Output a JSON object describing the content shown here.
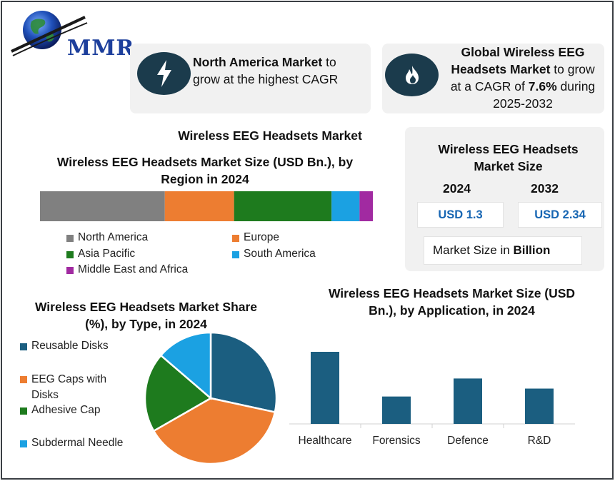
{
  "logo": {
    "text": "MMR",
    "icon": "globe-icon"
  },
  "info_cards": {
    "north_america": {
      "icon": "lightning-icon",
      "bold": "North America Market",
      "rest": " to grow at the highest CAGR"
    },
    "global": {
      "icon": "flame-icon",
      "bold_1": "Global Wireless EEG Headsets Market",
      "mid": " to grow at a CAGR of ",
      "bold_2": "7.6%",
      "rest": " during 2025-2032"
    }
  },
  "main_title": "Wireless EEG Headsets Market",
  "market_size": {
    "title": "Wireless EEG Headsets Market Size",
    "year_a": "2024",
    "year_b": "2032",
    "value_a": "USD 1.3",
    "value_b": "USD 2.34",
    "note_prefix": "Market Size in ",
    "note_bold": "Billion"
  },
  "colors": {
    "north_america": "#808080",
    "europe": "#ed7d31",
    "asia_pacific": "#1e7b1e",
    "south_america": "#1ba1e2",
    "middle_east_africa": "#a12aa1",
    "reusable": "#1b5e80",
    "caps": "#ed7d31",
    "adhesive": "#1e7b1e",
    "subdermal": "#1ba1e2",
    "app_bar": "#1b5e80"
  },
  "chart_data": [
    {
      "type": "bar",
      "orientation": "horizontal-stacked",
      "title": "Wireless EEG Headsets Market Size (USD Bn.), by Region in 2024",
      "categories": [
        "North America",
        "Europe",
        "Asia Pacific",
        "South America",
        "Middle East and Africa"
      ],
      "values": [
        37.5,
        20.8,
        29.3,
        8.4,
        4.0
      ],
      "legend": [
        "North America",
        "Europe",
        "Asia Pacific",
        "South America",
        "Middle East and Africa"
      ]
    },
    {
      "type": "pie",
      "title": "Wireless EEG Headsets Market Share (%), by Type, in 2024",
      "categories": [
        "Reusable Disks",
        "EEG Caps with Disks",
        "Adhesive Cap",
        "Subdermal Needle"
      ],
      "values": [
        28.4,
        38.3,
        19.6,
        13.7
      ]
    },
    {
      "type": "bar",
      "title": "Wireless EEG Headsets Market Size (USD Bn.), by Application, in 2024",
      "categories": [
        "Healthcare",
        "Forensics",
        "Defence",
        "R&D"
      ],
      "values": [
        100,
        38,
        63,
        49
      ],
      "xlabel": "",
      "ylabel": "",
      "ylim": [
        0,
        100
      ],
      "grid": false
    }
  ]
}
